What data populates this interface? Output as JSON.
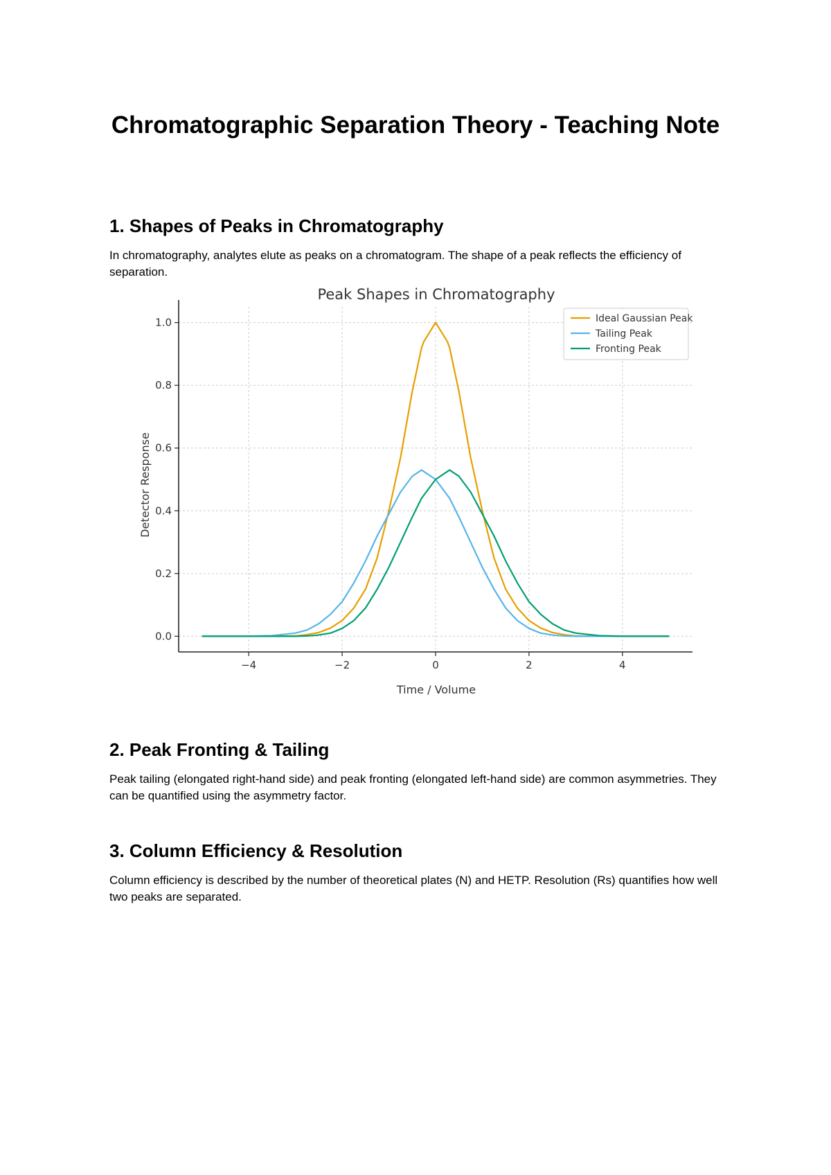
{
  "document": {
    "title": "Chromatographic Separation Theory - Teaching Note",
    "sections": [
      {
        "heading": "1. Shapes of Peaks in Chromatography",
        "paragraph": "In chromatography, analytes elute as peaks on a chromatogram. The shape of a peak reflects the efficiency of separation."
      },
      {
        "heading": "2. Peak Fronting & Tailing",
        "paragraph": "Peak tailing (elongated right-hand side) and peak fronting (elongated left-hand side) are common asymmetries. They can be quantified using the asymmetry factor."
      },
      {
        "heading": "3. Column Efficiency & Resolution",
        "paragraph": "Column efficiency is described by the number of theoretical plates (N) and HETP. Resolution (Rs) quantifies how well two peaks are separated."
      }
    ]
  },
  "chart_data": {
    "type": "line",
    "title": "Peak Shapes in Chromatography",
    "xlabel": "Time / Volume",
    "ylabel": "Detector Response",
    "xlim": [
      -5.5,
      5.5
    ],
    "ylim": [
      -0.05,
      1.05
    ],
    "xticks": [
      -4,
      -2,
      0,
      2,
      4
    ],
    "xtick_labels": [
      "−4",
      "−2",
      "0",
      "2",
      "4"
    ],
    "yticks": [
      0.0,
      0.2,
      0.4,
      0.6,
      0.8,
      1.0
    ],
    "ytick_labels": [
      "0.0",
      "0.2",
      "0.4",
      "0.6",
      "0.8",
      "1.0"
    ],
    "grid": true,
    "legend_position": "top-right",
    "x": [
      -5,
      -4.5,
      -4,
      -3.5,
      -3,
      -2.75,
      -2.5,
      -2.25,
      -2,
      -1.75,
      -1.5,
      -1.25,
      -1,
      -0.75,
      -0.5,
      -0.3,
      -0.25,
      0,
      0.25,
      0.3,
      0.5,
      0.75,
      1,
      1.25,
      1.5,
      1.75,
      2,
      2.25,
      2.5,
      2.75,
      3,
      3.5,
      4,
      4.5,
      5
    ],
    "series": [
      {
        "name": "Ideal Gaussian Peak",
        "color": "#e69f00",
        "values": [
          0.0,
          0.0,
          0.0,
          0.0,
          0.001,
          0.005,
          0.012,
          0.026,
          0.05,
          0.09,
          0.15,
          0.25,
          0.4,
          0.57,
          0.78,
          0.92,
          0.94,
          1.0,
          0.94,
          0.92,
          0.78,
          0.57,
          0.4,
          0.25,
          0.15,
          0.09,
          0.05,
          0.026,
          0.012,
          0.005,
          0.001,
          0.0,
          0.0,
          0.0,
          0.0
        ]
      },
      {
        "name": "Tailing Peak",
        "color": "#56b4e9",
        "values": [
          0.0,
          0.0,
          0.0,
          0.002,
          0.01,
          0.02,
          0.04,
          0.07,
          0.11,
          0.17,
          0.24,
          0.32,
          0.39,
          0.46,
          0.51,
          0.53,
          0.525,
          0.5,
          0.45,
          0.44,
          0.38,
          0.3,
          0.22,
          0.15,
          0.09,
          0.05,
          0.025,
          0.01,
          0.004,
          0.001,
          0.0,
          0.0,
          0.0,
          0.0,
          0.0
        ]
      },
      {
        "name": "Fronting Peak",
        "color": "#009e73",
        "values": [
          0.0,
          0.0,
          0.0,
          0.0,
          0.0,
          0.001,
          0.004,
          0.01,
          0.025,
          0.05,
          0.09,
          0.15,
          0.22,
          0.3,
          0.38,
          0.44,
          0.45,
          0.5,
          0.525,
          0.53,
          0.51,
          0.46,
          0.39,
          0.32,
          0.24,
          0.17,
          0.11,
          0.07,
          0.04,
          0.02,
          0.01,
          0.002,
          0.0,
          0.0,
          0.0
        ]
      }
    ]
  }
}
